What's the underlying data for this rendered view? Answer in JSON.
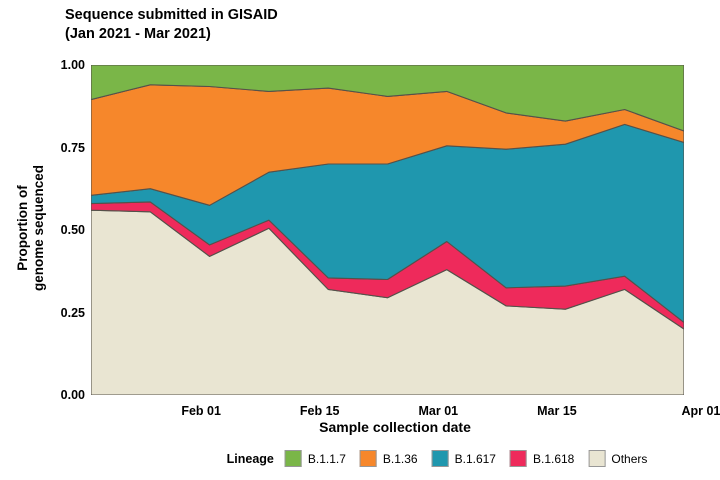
{
  "title": {
    "line1": "Sequence submitted in GISAID",
    "line2": "(Jan 2021 - Mar 2021)"
  },
  "axes": {
    "y_label_line1": "Proportion of",
    "y_label_line2": "genome sequenced",
    "x_label": "Sample collection date"
  },
  "legend": {
    "title": "Lineage",
    "items": [
      {
        "label": "B.1.1.7",
        "color": "#7AB648"
      },
      {
        "label": "B.1.36",
        "color": "#F6872B"
      },
      {
        "label": "B.1.617",
        "color": "#1F97AE"
      },
      {
        "label": "B.1.618",
        "color": "#EE2A5B"
      },
      {
        "label": "Others",
        "color": "#E9E5D2"
      }
    ]
  },
  "chart_data": {
    "type": "area",
    "stacked": true,
    "title": "Sequence submitted in GISAID (Jan 2021 - Mar 2021)",
    "xlabel": "Sample collection date",
    "ylabel": "Proportion of genome sequenced",
    "ylim": [
      0,
      1
    ],
    "grid": false,
    "legend_position": "bottom",
    "outline_color": "#55514A",
    "x_dates": [
      "Jan 19",
      "Jan 26",
      "Feb 02",
      "Feb 09",
      "Feb 16",
      "Feb 23",
      "Mar 02",
      "Mar 09",
      "Mar 16",
      "Mar 23",
      "Mar 30"
    ],
    "x_days": [
      0,
      7,
      14,
      21,
      28,
      35,
      42,
      49,
      56,
      63,
      70
    ],
    "axis_total_days": 70,
    "y_ticks": [
      {
        "label": "0.00",
        "value": 0.0
      },
      {
        "label": "0.25",
        "value": 0.25
      },
      {
        "label": "0.50",
        "value": 0.5
      },
      {
        "label": "0.75",
        "value": 0.75
      },
      {
        "label": "1.00",
        "value": 1.0
      }
    ],
    "x_ticks": [
      {
        "label": "Feb 01",
        "day": 13
      },
      {
        "label": "Feb 15",
        "day": 27
      },
      {
        "label": "Mar 01",
        "day": 41
      },
      {
        "label": "Mar 15",
        "day": 55
      },
      {
        "label": "Apr 01",
        "day": 72
      }
    ],
    "series_bottom_to_top": [
      {
        "name": "Others",
        "color": "#E9E5D2",
        "values": [
          0.56,
          0.555,
          0.42,
          0.505,
          0.32,
          0.295,
          0.38,
          0.27,
          0.26,
          0.32,
          0.2
        ]
      },
      {
        "name": "B.1.618",
        "color": "#EE2A5B",
        "values": [
          0.02,
          0.03,
          0.035,
          0.025,
          0.035,
          0.055,
          0.085,
          0.055,
          0.07,
          0.04,
          0.02
        ]
      },
      {
        "name": "B.1.617",
        "color": "#1F97AE",
        "values": [
          0.025,
          0.04,
          0.12,
          0.145,
          0.345,
          0.35,
          0.29,
          0.42,
          0.43,
          0.46,
          0.545
        ]
      },
      {
        "name": "B.1.36",
        "color": "#F6872B",
        "values": [
          0.29,
          0.315,
          0.36,
          0.245,
          0.23,
          0.205,
          0.165,
          0.11,
          0.07,
          0.045,
          0.035
        ]
      },
      {
        "name": "B.1.1.7",
        "color": "#7AB648",
        "values": [
          0.105,
          0.06,
          0.065,
          0.08,
          0.07,
          0.095,
          0.08,
          0.145,
          0.17,
          0.135,
          0.2
        ]
      }
    ]
  }
}
